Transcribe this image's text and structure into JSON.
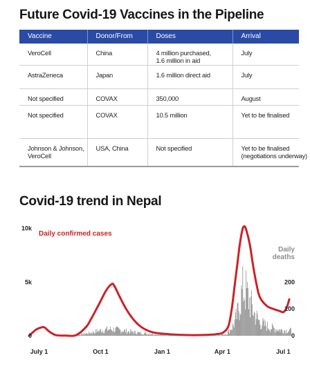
{
  "vaccine_table": {
    "title": "Future Covid-19 Vaccines in the Pipeline",
    "columns": [
      "Vaccine",
      "Donor/From",
      "Doses",
      "Arrival"
    ],
    "rows": [
      [
        [
          "VeroCell"
        ],
        [
          "China"
        ],
        [
          "4 million purchased,",
          "1.6 million in aid"
        ],
        [
          "July"
        ]
      ],
      [
        [
          "AstraZeneca"
        ],
        [
          "Japan"
        ],
        [
          "1.6 million direct aid"
        ],
        [
          "July"
        ]
      ],
      [
        [
          "Not specified"
        ],
        [
          "COVAX"
        ],
        [
          "350,000"
        ],
        [
          "August"
        ]
      ],
      [
        [
          "Not specified"
        ],
        [
          "COVAX"
        ],
        [
          "10.5 million"
        ],
        [
          "Yet to be finalised"
        ]
      ],
      [
        [
          "Johnson & Johnson,",
          "VeroCell"
        ],
        [
          "USA, China"
        ],
        [
          "Not specified"
        ],
        [
          "Yet to be finalised",
          "(negotiations underway)"
        ]
      ]
    ]
  },
  "chart_data": {
    "type": "line",
    "title": "Covid-19 trend in Nepal",
    "x_ticks": [
      "July 1",
      "Oct 1",
      "Jan 1",
      "Apr 1",
      "Jul 1"
    ],
    "x_tick_days": [
      0,
      92,
      184,
      274,
      365
    ],
    "x_range": [
      -15,
      376
    ],
    "left_axis": {
      "ticks": [
        "0",
        "5k",
        "10k"
      ],
      "tick_values": [
        0,
        5000,
        10000
      ],
      "range": [
        0,
        10300
      ]
    },
    "right_axis": {
      "ticks": [
        "0",
        "100",
        "200"
      ],
      "tick_values": [
        0,
        100,
        200
      ],
      "range": [
        0,
        412
      ]
    },
    "series": [
      {
        "name": "Daily confirmed cases",
        "color": "#cc2127",
        "axis": "left",
        "points": [
          [
            -15,
            0
          ],
          [
            -5,
            550
          ],
          [
            2,
            750
          ],
          [
            8,
            780
          ],
          [
            15,
            400
          ],
          [
            25,
            60
          ],
          [
            40,
            20
          ],
          [
            55,
            50
          ],
          [
            70,
            800
          ],
          [
            78,
            1600
          ],
          [
            90,
            3000
          ],
          [
            100,
            4200
          ],
          [
            108,
            4800
          ],
          [
            112,
            4700
          ],
          [
            120,
            3700
          ],
          [
            130,
            2500
          ],
          [
            140,
            1600
          ],
          [
            150,
            950
          ],
          [
            160,
            550
          ],
          [
            170,
            320
          ],
          [
            184,
            200
          ],
          [
            200,
            120
          ],
          [
            215,
            80
          ],
          [
            230,
            60
          ],
          [
            245,
            70
          ],
          [
            255,
            100
          ],
          [
            265,
            150
          ],
          [
            275,
            300
          ],
          [
            283,
            900
          ],
          [
            288,
            2500
          ],
          [
            292,
            4500
          ],
          [
            296,
            6500
          ],
          [
            300,
            8500
          ],
          [
            304,
            9900
          ],
          [
            307,
            10200
          ],
          [
            310,
            9800
          ],
          [
            315,
            8500
          ],
          [
            320,
            6500
          ],
          [
            325,
            4800
          ],
          [
            330,
            3600
          ],
          [
            340,
            2800
          ],
          [
            350,
            2500
          ],
          [
            360,
            2300
          ],
          [
            365,
            2200
          ],
          [
            370,
            2600
          ],
          [
            374,
            3400
          ]
        ]
      },
      {
        "name": "Daily deaths",
        "color": "#8c8c8c",
        "axis": "right",
        "values_shape": "bars",
        "envelope": [
          [
            -15,
            0
          ],
          [
            40,
            0
          ],
          [
            60,
            5
          ],
          [
            75,
            12
          ],
          [
            90,
            22
          ],
          [
            105,
            28
          ],
          [
            115,
            26
          ],
          [
            130,
            20
          ],
          [
            150,
            12
          ],
          [
            170,
            8
          ],
          [
            184,
            5
          ],
          [
            210,
            3
          ],
          [
            240,
            2
          ],
          [
            265,
            2
          ],
          [
            280,
            8
          ],
          [
            290,
            45
          ],
          [
            296,
            90
          ],
          [
            301,
            160
          ],
          [
            305,
            200
          ],
          [
            309,
            185
          ],
          [
            315,
            140
          ],
          [
            322,
            90
          ],
          [
            330,
            55
          ],
          [
            345,
            35
          ],
          [
            360,
            25
          ],
          [
            374,
            22
          ]
        ]
      }
    ],
    "legend": [
      {
        "label": "Daily confirmed cases",
        "placement": "top-left",
        "color": "#cc2127"
      },
      {
        "label": "Daily deaths",
        "placement": "top-right",
        "color": "#8c8c8c"
      }
    ],
    "grid": false
  }
}
